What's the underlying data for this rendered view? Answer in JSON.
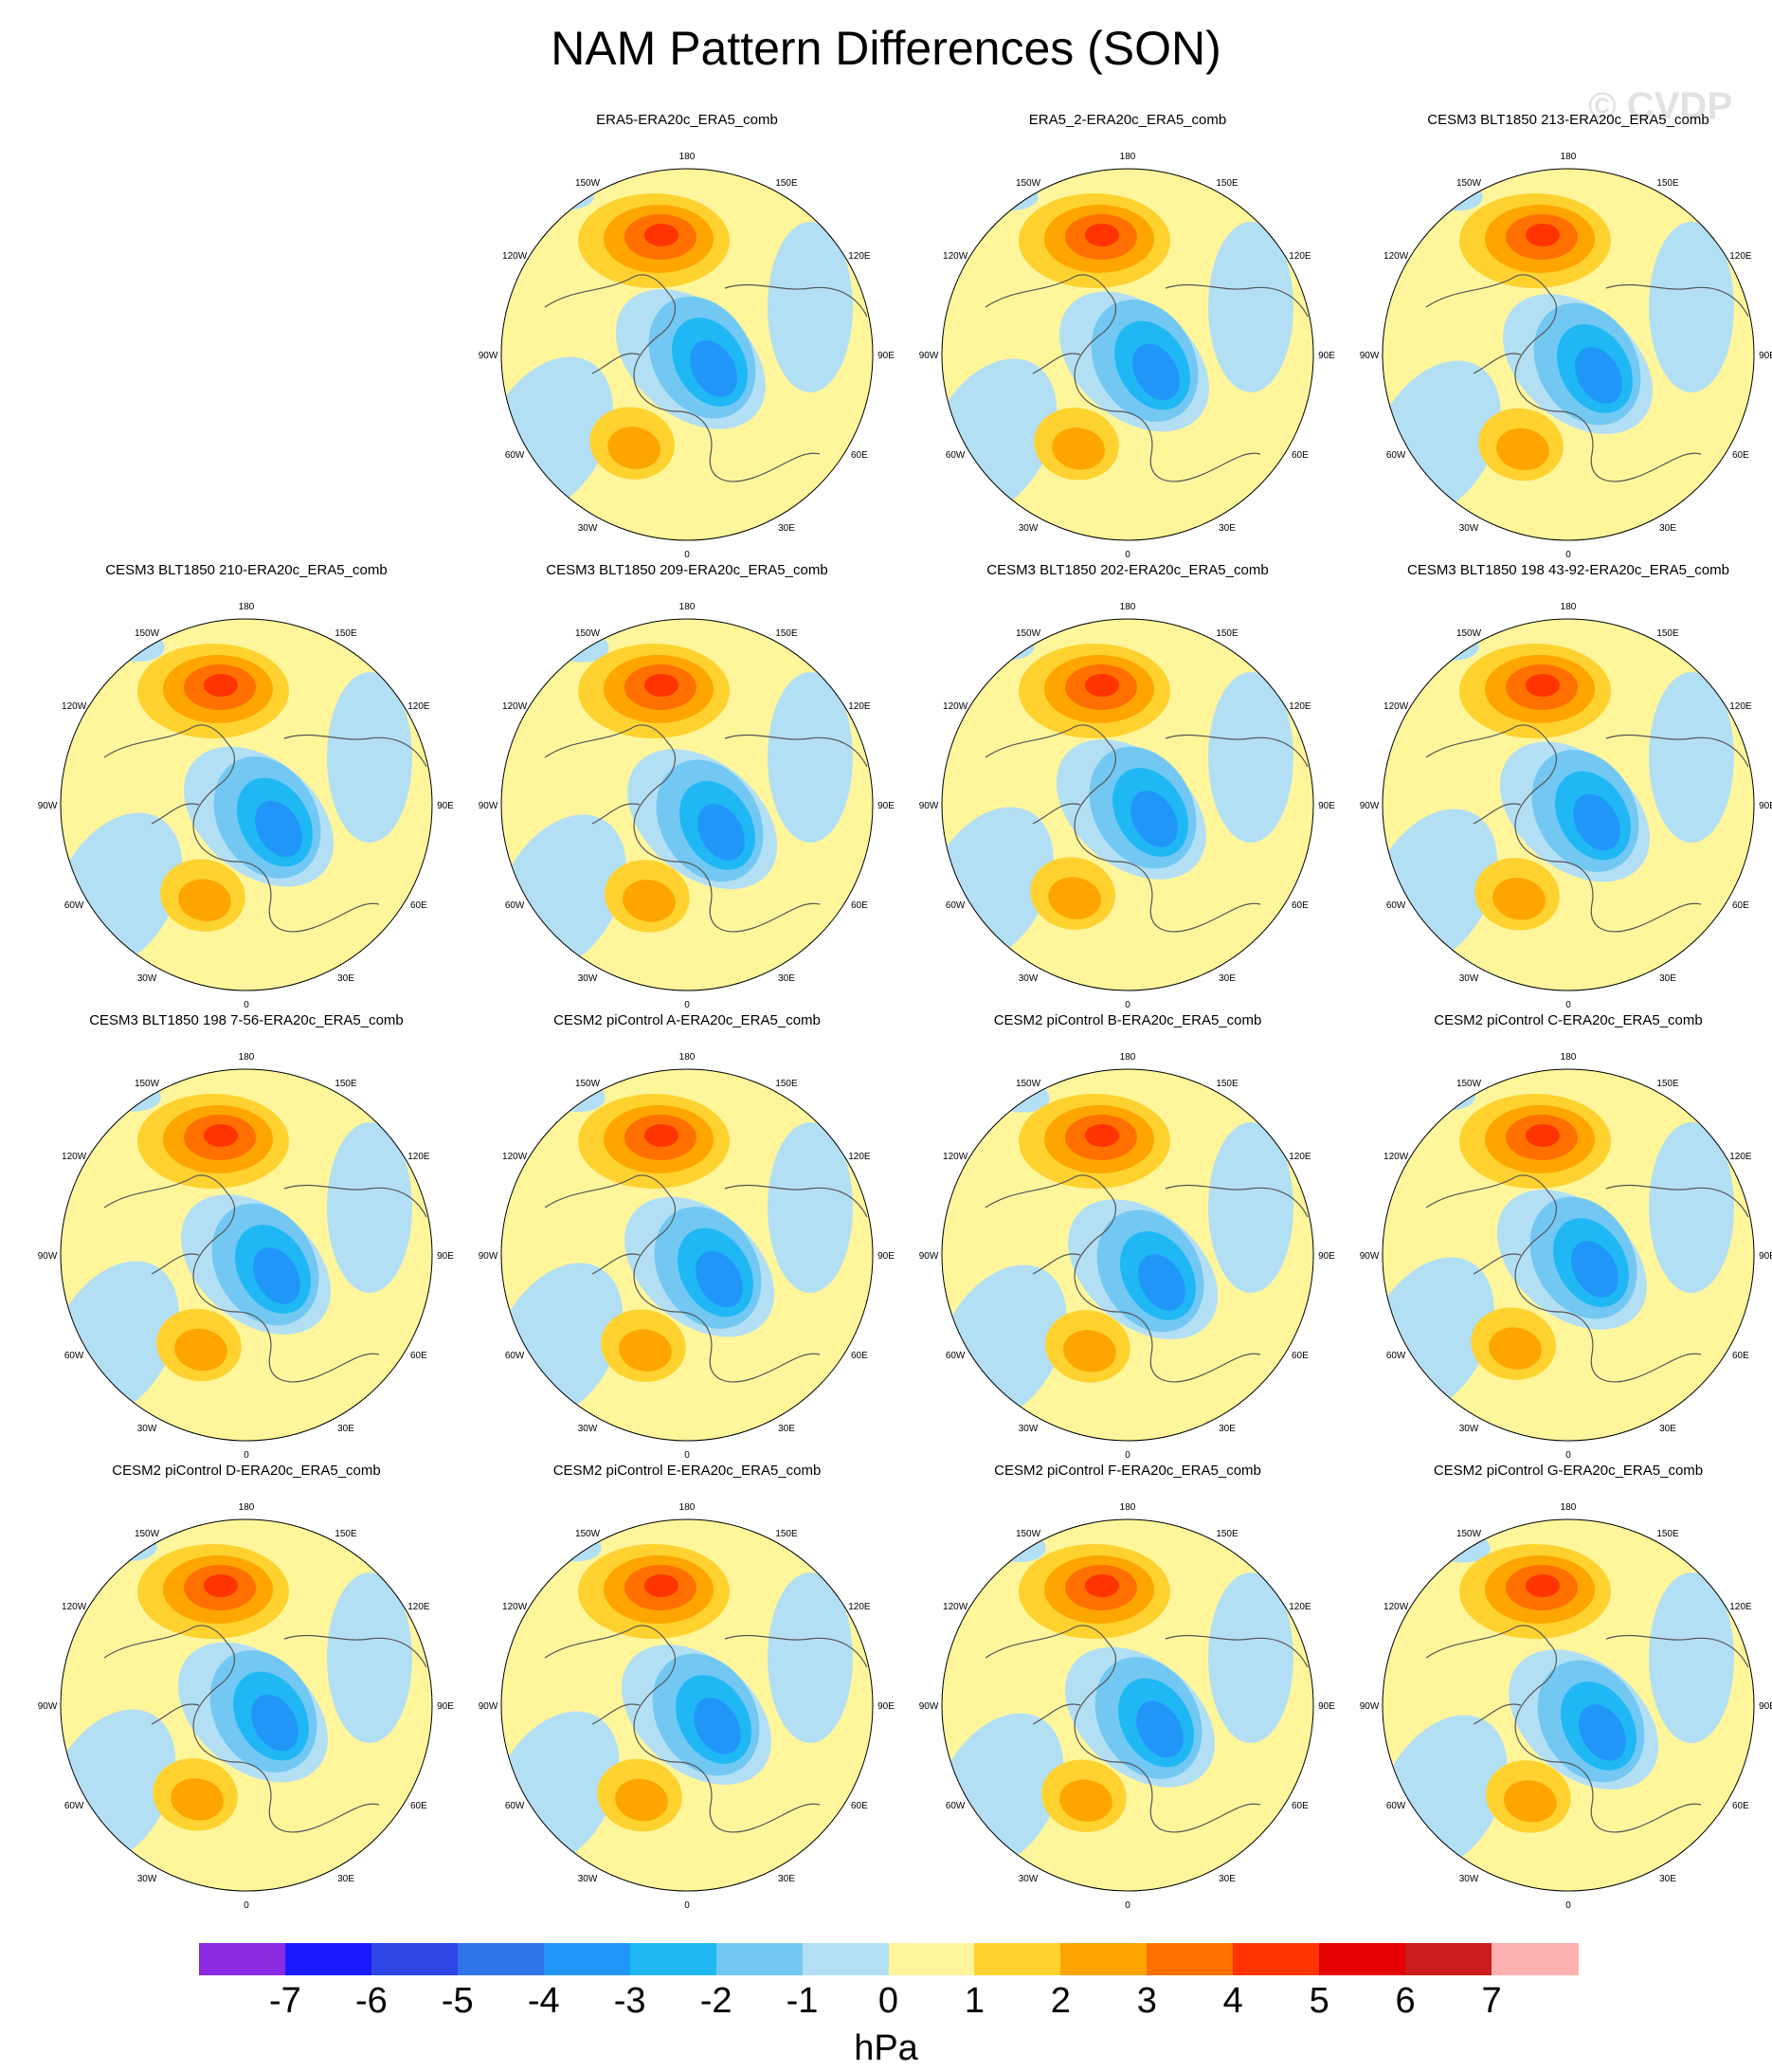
{
  "title": "NAM Pattern Differences (SON)",
  "watermark": "© CVDP",
  "lon_labels": [
    "180",
    "150E",
    "120E",
    "90E",
    "60E",
    "30E",
    "0",
    "30W",
    "60W",
    "90W",
    "120W",
    "150W"
  ],
  "panels": [
    {
      "title": "ERA5-ERA20c_ERA5_comb",
      "pos": 1
    },
    {
      "title": "ERA5_2-ERA20c_ERA5_comb",
      "pos": 2
    },
    {
      "title": "CESM3 BLT1850 213-ERA20c_ERA5_comb",
      "pos": 3
    },
    {
      "title": "CESM3 BLT1850 210-ERA20c_ERA5_comb",
      "pos": 4
    },
    {
      "title": "CESM3 BLT1850 209-ERA20c_ERA5_comb",
      "pos": 5
    },
    {
      "title": "CESM3 BLT1850 202-ERA20c_ERA5_comb",
      "pos": 6
    },
    {
      "title": "CESM3 BLT1850 198 43-92-ERA20c_ERA5_comb",
      "pos": 7
    },
    {
      "title": "CESM3 BLT1850 198 7-56-ERA20c_ERA5_comb",
      "pos": 8
    },
    {
      "title": "CESM2 piControl A-ERA20c_ERA5_comb",
      "pos": 9
    },
    {
      "title": "CESM2 piControl B-ERA20c_ERA5_comb",
      "pos": 10
    },
    {
      "title": "CESM2 piControl C-ERA20c_ERA5_comb",
      "pos": 11
    },
    {
      "title": "CESM2 piControl D-ERA20c_ERA5_comb",
      "pos": 12
    },
    {
      "title": "CESM2 piControl E-ERA20c_ERA5_comb",
      "pos": 13
    },
    {
      "title": "CESM2 piControl F-ERA20c_ERA5_comb",
      "pos": 14
    },
    {
      "title": "CESM2 piControl G-ERA20c_ERA5_comb",
      "pos": 15
    }
  ],
  "colorbar": {
    "units": "hPa",
    "colors": [
      "#8a2be2",
      "#1a1aff",
      "#2e46e6",
      "#2f74e8",
      "#2096f8",
      "#1fb8f5",
      "#72c8f2",
      "#b3dff4",
      "#fff69c",
      "#ffd230",
      "#ffa500",
      "#ff7000",
      "#ff3400",
      "#e40000",
      "#cc1c1c",
      "#ffb0b0"
    ],
    "ticks": [
      "-7",
      "-6",
      "-5",
      "-4",
      "-3",
      "-2",
      "-1",
      "0",
      "1",
      "2",
      "3",
      "4",
      "5",
      "6",
      "7"
    ]
  }
}
